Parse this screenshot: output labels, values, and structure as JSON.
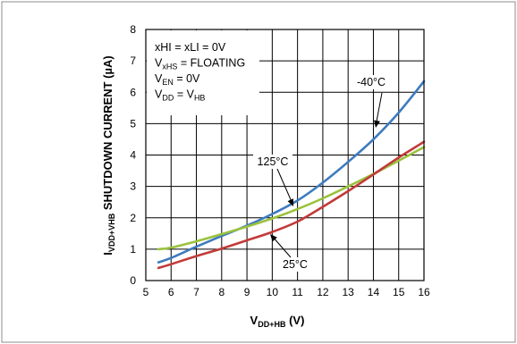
{
  "chart_data": {
    "type": "line",
    "xlabel": {
      "main": "V",
      "sub": "DD+HB",
      "tail": " (V)"
    },
    "ylabel": {
      "main": "I",
      "sub": "VDD+VHB",
      "tail": " SHUTDOWN CURRENT (µA)"
    },
    "xlim": [
      5,
      16
    ],
    "ylim": [
      0,
      8
    ],
    "xticks": [
      "5",
      "6",
      "7",
      "8",
      "9",
      "10",
      "11",
      "12",
      "13",
      "14",
      "15",
      "16"
    ],
    "yticks": [
      "0",
      "1",
      "2",
      "3",
      "4",
      "5",
      "6",
      "7",
      "8"
    ],
    "grid": true,
    "conditions": [
      {
        "main": "xHI = xLI = 0V",
        "sub": "",
        "tail": ""
      },
      {
        "main": "V",
        "sub": "xHS",
        "tail": " = FLOATING"
      },
      {
        "main": "V",
        "sub": "EN",
        "tail": " = 0V"
      },
      {
        "main": "V",
        "sub": "DD",
        "tail": " = V",
        "sub2": "HB"
      }
    ],
    "series": [
      {
        "name": "-40°C",
        "color": "#3d7bbf",
        "x": [
          5.5,
          6,
          7,
          8,
          9,
          10,
          11,
          12,
          13,
          14,
          15,
          16
        ],
        "y": [
          0.58,
          0.72,
          1.08,
          1.42,
          1.75,
          2.12,
          2.55,
          3.12,
          3.78,
          4.5,
          5.35,
          6.35
        ]
      },
      {
        "name": "125°C",
        "color": "#9ac23c",
        "x": [
          5.5,
          6,
          7,
          8,
          9,
          10,
          11,
          12,
          13,
          14,
          15,
          16
        ],
        "y": [
          1.0,
          1.05,
          1.25,
          1.48,
          1.72,
          1.98,
          2.28,
          2.62,
          3.0,
          3.4,
          3.82,
          4.25
        ]
      },
      {
        "name": "25°C",
        "color": "#c23a3a",
        "x": [
          5.5,
          6,
          7,
          8,
          9,
          10,
          11,
          12,
          13,
          14,
          15,
          16
        ],
        "y": [
          0.4,
          0.52,
          0.78,
          1.02,
          1.28,
          1.55,
          1.88,
          2.35,
          2.85,
          3.38,
          3.92,
          4.42
        ]
      }
    ],
    "annotations": [
      {
        "text": "-40°C",
        "series": "-40°C"
      },
      {
        "text": "125°C",
        "series": "125°C"
      },
      {
        "text": "25°C",
        "series": "25°C"
      }
    ]
  }
}
